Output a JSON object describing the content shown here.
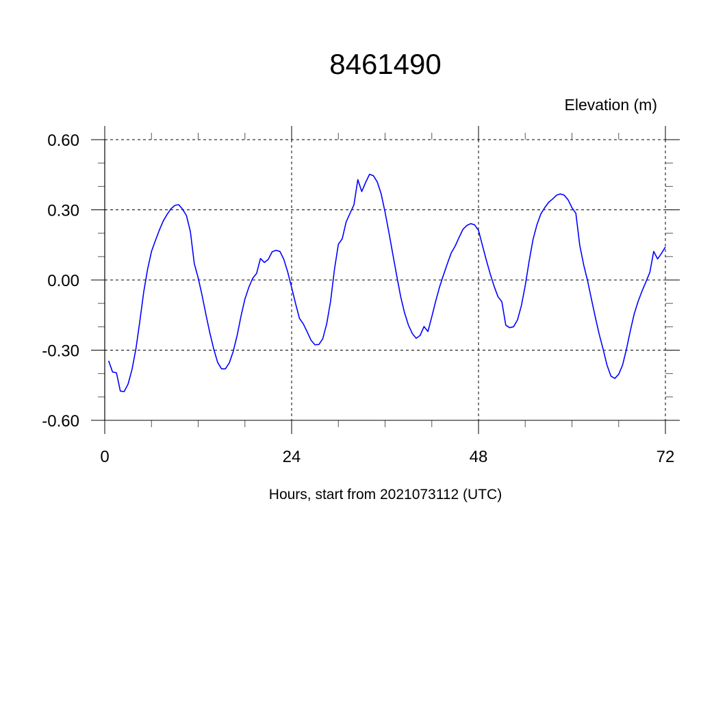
{
  "chart_data": {
    "type": "line",
    "title": "8461490",
    "ylabel": "Elevation (m)",
    "xlabel": "Hours, start from 2021073112 (UTC)",
    "xlim": [
      0,
      72
    ],
    "ylim": [
      -0.6,
      0.6
    ],
    "x_ticks": [
      0,
      24,
      48,
      72
    ],
    "x_tick_labels": [
      "0",
      "24",
      "48",
      "72"
    ],
    "x_minor_step": 6,
    "y_ticks": [
      0.6,
      0.3,
      0.0,
      -0.3,
      -0.6
    ],
    "y_tick_labels": [
      "0.60",
      "0.30",
      "0.00",
      "-0.30",
      "-0.60"
    ],
    "y_minor_step": 0.1,
    "grid": true,
    "grid_style": "dashed",
    "line_color": "#0000ff",
    "series": [
      {
        "x": [
          0.5,
          1,
          1.5,
          2,
          2.5,
          3,
          3.5,
          4,
          4.5,
          5,
          5.5,
          6,
          6.5,
          7,
          7.5,
          8,
          8.5,
          9,
          9.5,
          10,
          10.5,
          11,
          11.5,
          12,
          12.5,
          13,
          13.5,
          14,
          14.5,
          15,
          15.5,
          16,
          16.5,
          17,
          17.5,
          18,
          18.5,
          19,
          19.5,
          20,
          20.5,
          21,
          21.5,
          22,
          22.5,
          23,
          23.5,
          24,
          24.5,
          25,
          25.5,
          26,
          26.5,
          27,
          27.5,
          28,
          28.5,
          29,
          29.5,
          30,
          30.5,
          31,
          31.5,
          32,
          32.5,
          33,
          33.5,
          34,
          34.5,
          35,
          35.5,
          36,
          36.5,
          37,
          37.5,
          38,
          38.5,
          39,
          39.5,
          40,
          40.5,
          41,
          41.5,
          42,
          42.5,
          43,
          43.5,
          44,
          44.5,
          45,
          45.5,
          46,
          46.5,
          47,
          47.5,
          48,
          48.5,
          49,
          49.5,
          50,
          50.5,
          51,
          51.5,
          52,
          52.5,
          53,
          53.5,
          54,
          54.5,
          55,
          55.5,
          56,
          56.5,
          57,
          57.5,
          58,
          58.5,
          59,
          59.5,
          60,
          60.5,
          61,
          61.5,
          62,
          62.5,
          63,
          63.5,
          64,
          64.5,
          65,
          65.5,
          66,
          66.5,
          67,
          67.5,
          68,
          68.5,
          69,
          69.5,
          70,
          70.5,
          71,
          71.5,
          72
        ],
        "values": [
          -0.346,
          -0.393,
          -0.397,
          -0.475,
          -0.477,
          -0.445,
          -0.383,
          -0.295,
          -0.178,
          -0.052,
          0.046,
          0.122,
          0.168,
          0.212,
          0.251,
          0.28,
          0.304,
          0.319,
          0.322,
          0.302,
          0.275,
          0.207,
          0.07,
          0.009,
          -0.066,
          -0.149,
          -0.227,
          -0.296,
          -0.352,
          -0.38,
          -0.38,
          -0.354,
          -0.305,
          -0.237,
          -0.154,
          -0.081,
          -0.032,
          0.007,
          0.028,
          0.092,
          0.075,
          0.088,
          0.121,
          0.127,
          0.122,
          0.088,
          0.034,
          -0.032,
          -0.1,
          -0.164,
          -0.188,
          -0.222,
          -0.258,
          -0.277,
          -0.276,
          -0.251,
          -0.188,
          -0.091,
          0.046,
          0.153,
          0.176,
          0.248,
          0.285,
          0.321,
          0.429,
          0.378,
          0.417,
          0.452,
          0.446,
          0.419,
          0.368,
          0.29,
          0.202,
          0.109,
          0.017,
          -0.071,
          -0.14,
          -0.193,
          -0.229,
          -0.249,
          -0.237,
          -0.199,
          -0.22,
          -0.157,
          -0.091,
          -0.03,
          0.021,
          0.07,
          0.116,
          0.145,
          0.182,
          0.217,
          0.233,
          0.241,
          0.236,
          0.212,
          0.148,
          0.085,
          0.026,
          -0.027,
          -0.071,
          -0.093,
          -0.193,
          -0.204,
          -0.2,
          -0.171,
          -0.11,
          -0.023,
          0.08,
          0.173,
          0.236,
          0.282,
          0.309,
          0.332,
          0.346,
          0.362,
          0.368,
          0.363,
          0.343,
          0.309,
          0.285,
          0.148,
          0.065,
          -0.003,
          -0.081,
          -0.159,
          -0.232,
          -0.296,
          -0.364,
          -0.411,
          -0.421,
          -0.403,
          -0.364,
          -0.296,
          -0.217,
          -0.144,
          -0.091,
          -0.047,
          -0.008,
          0.033,
          0.122,
          0.09,
          0.114,
          0.141
        ]
      }
    ]
  }
}
